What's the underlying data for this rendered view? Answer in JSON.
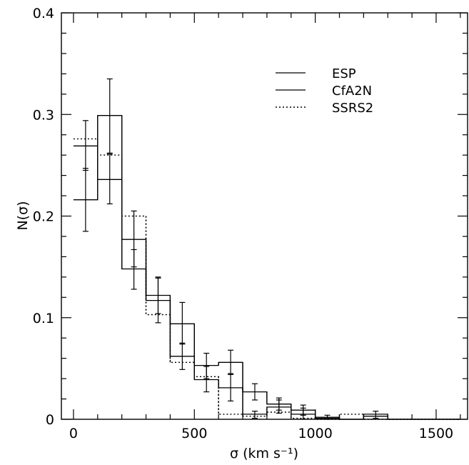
{
  "chart_data": {
    "type": "histogram",
    "xlabel": "σ (km s⁻¹)",
    "ylabel": "N(σ)",
    "xlim": [
      -50,
      1630
    ],
    "ylim": [
      0,
      0.4
    ],
    "x_ticks": [
      0,
      500,
      1000,
      1500
    ],
    "y_ticks": [
      0,
      0.1,
      0.2,
      0.3,
      0.4
    ],
    "y_tick_labels": [
      "0",
      "0.1",
      "0.2",
      "0.3",
      "0.4"
    ],
    "bin_edges": [
      0,
      100,
      200,
      300,
      400,
      500,
      600,
      700,
      800,
      900,
      1000,
      1100,
      1200,
      1300,
      1400,
      1500,
      1600
    ],
    "legend_position": "top-right",
    "series": [
      {
        "name": "ESP",
        "style": "solid",
        "values": [
          0.216,
          0.299,
          0.148,
          0.122,
          0.094,
          0.053,
          0.056,
          0.027,
          0.015,
          0.009,
          0.002,
          0.0,
          0.005,
          0.0,
          0.0,
          0.0
        ],
        "error_x": [
          50,
          150,
          250,
          350,
          450,
          550,
          650,
          750,
          850,
          950,
          1050,
          1250
        ],
        "error_bars": [
          [
            0.185,
            0.247
          ],
          [
            0.262,
            0.335
          ],
          [
            0.128,
            0.167
          ],
          [
            0.104,
            0.139
          ],
          [
            0.074,
            0.115
          ],
          [
            0.04,
            0.065
          ],
          [
            0.044,
            0.068
          ],
          [
            0.019,
            0.035
          ],
          [
            0.009,
            0.021
          ],
          [
            0.004,
            0.014
          ],
          [
            0.0,
            0.004
          ],
          [
            0.001,
            0.008
          ]
        ]
      },
      {
        "name": "CfA2N",
        "style": "solid",
        "values": [
          0.269,
          0.236,
          0.177,
          0.117,
          0.062,
          0.039,
          0.031,
          0.005,
          0.012,
          0.005,
          0.001,
          0.0,
          0.003,
          0.0,
          0.0,
          0.0
        ],
        "error_x": [
          50,
          150,
          250,
          350,
          450,
          550,
          650,
          750,
          850,
          950
        ],
        "error_bars": [
          [
            0.245,
            0.294
          ],
          [
            0.212,
            0.261
          ],
          [
            0.15,
            0.205
          ],
          [
            0.095,
            0.14
          ],
          [
            0.049,
            0.075
          ],
          [
            0.027,
            0.052
          ],
          [
            0.018,
            0.045
          ],
          [
            0.001,
            0.008
          ],
          [
            0.006,
            0.019
          ],
          [
            0.0,
            0.011
          ]
        ]
      },
      {
        "name": "SSRS2",
        "style": "dotted",
        "values": [
          0.276,
          0.26,
          0.2,
          0.103,
          0.056,
          0.042,
          0.005,
          0.003,
          0.007,
          0.001,
          0.0,
          0.005,
          0.0,
          0.0,
          0.0,
          0.0
        ],
        "error_x": [],
        "error_bars": []
      }
    ]
  }
}
